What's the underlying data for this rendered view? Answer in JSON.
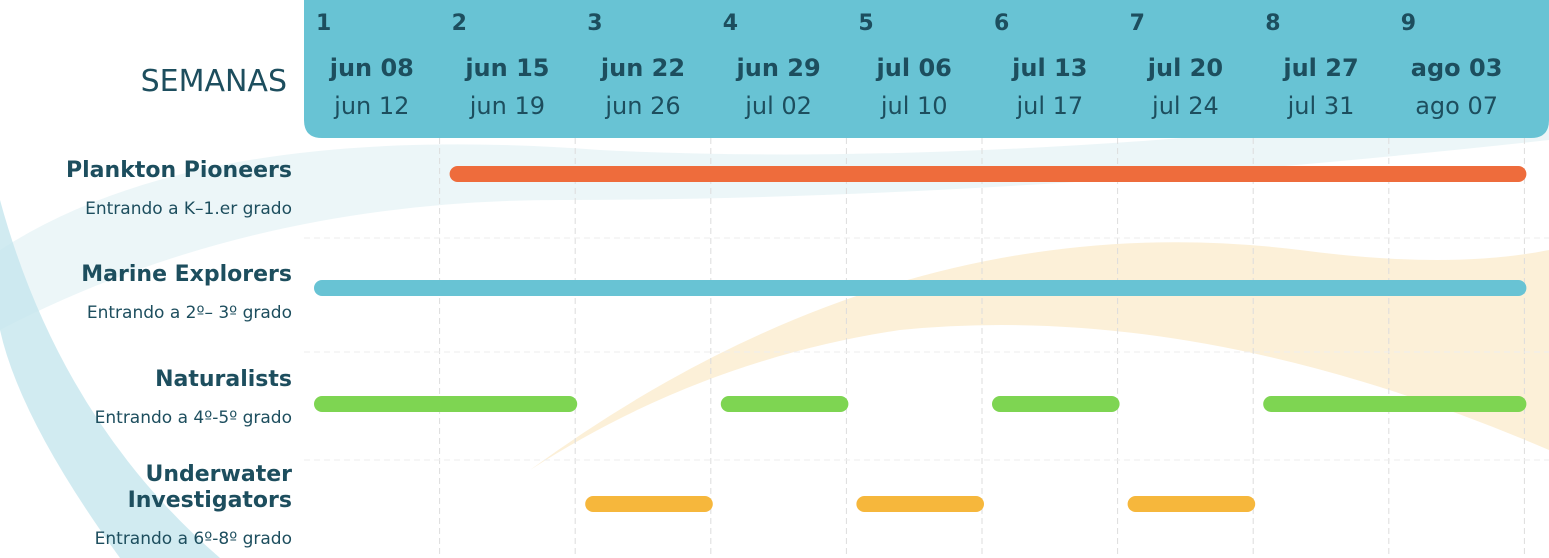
{
  "header": {
    "title": "SEMANAS"
  },
  "weeks": [
    {
      "number": 1,
      "start": "jun 08",
      "end": "jun 12"
    },
    {
      "number": 2,
      "start": "jun 15",
      "end": "jun 19"
    },
    {
      "number": 3,
      "start": "jun 22",
      "end": "jun 26"
    },
    {
      "number": 4,
      "start": "jun 29",
      "end": "jul 02"
    },
    {
      "number": 5,
      "start": "jul 06",
      "end": "jul 10"
    },
    {
      "number": 6,
      "start": "jul 13",
      "end": "jul 17"
    },
    {
      "number": 7,
      "start": "jul 20",
      "end": "jul 24"
    },
    {
      "number": 8,
      "start": "jul 27",
      "end": "jul 31"
    },
    {
      "number": 9,
      "start": "ago 03",
      "end": "ago 07"
    }
  ],
  "programs": [
    {
      "name": "Plankton Pioneers",
      "grade": "Entrando a K–1.er grado",
      "color": "#ee6c3c",
      "sessions": [
        {
          "from": 2,
          "to": 9
        }
      ]
    },
    {
      "name": "Marine Explorers",
      "grade": "Entrando a 2º– 3º grado",
      "color": "#68c3d4",
      "sessions": [
        {
          "from": 1,
          "to": 9
        }
      ]
    },
    {
      "name": "Naturalists",
      "grade": "Entrando a 4º-5º grado",
      "color": "#7ed552",
      "sessions": [
        {
          "from": 1,
          "to": 2
        },
        {
          "from": 4,
          "to": 4
        },
        {
          "from": 6,
          "to": 6
        },
        {
          "from": 8,
          "to": 9
        }
      ]
    },
    {
      "name": "Underwater Investigators",
      "grade": "Entrando a 6º-8º grado",
      "color": "#f6b73c",
      "sessions": [
        {
          "from": 3,
          "to": 3
        },
        {
          "from": 5,
          "to": 5
        },
        {
          "from": 7,
          "to": 7
        }
      ]
    }
  ]
}
